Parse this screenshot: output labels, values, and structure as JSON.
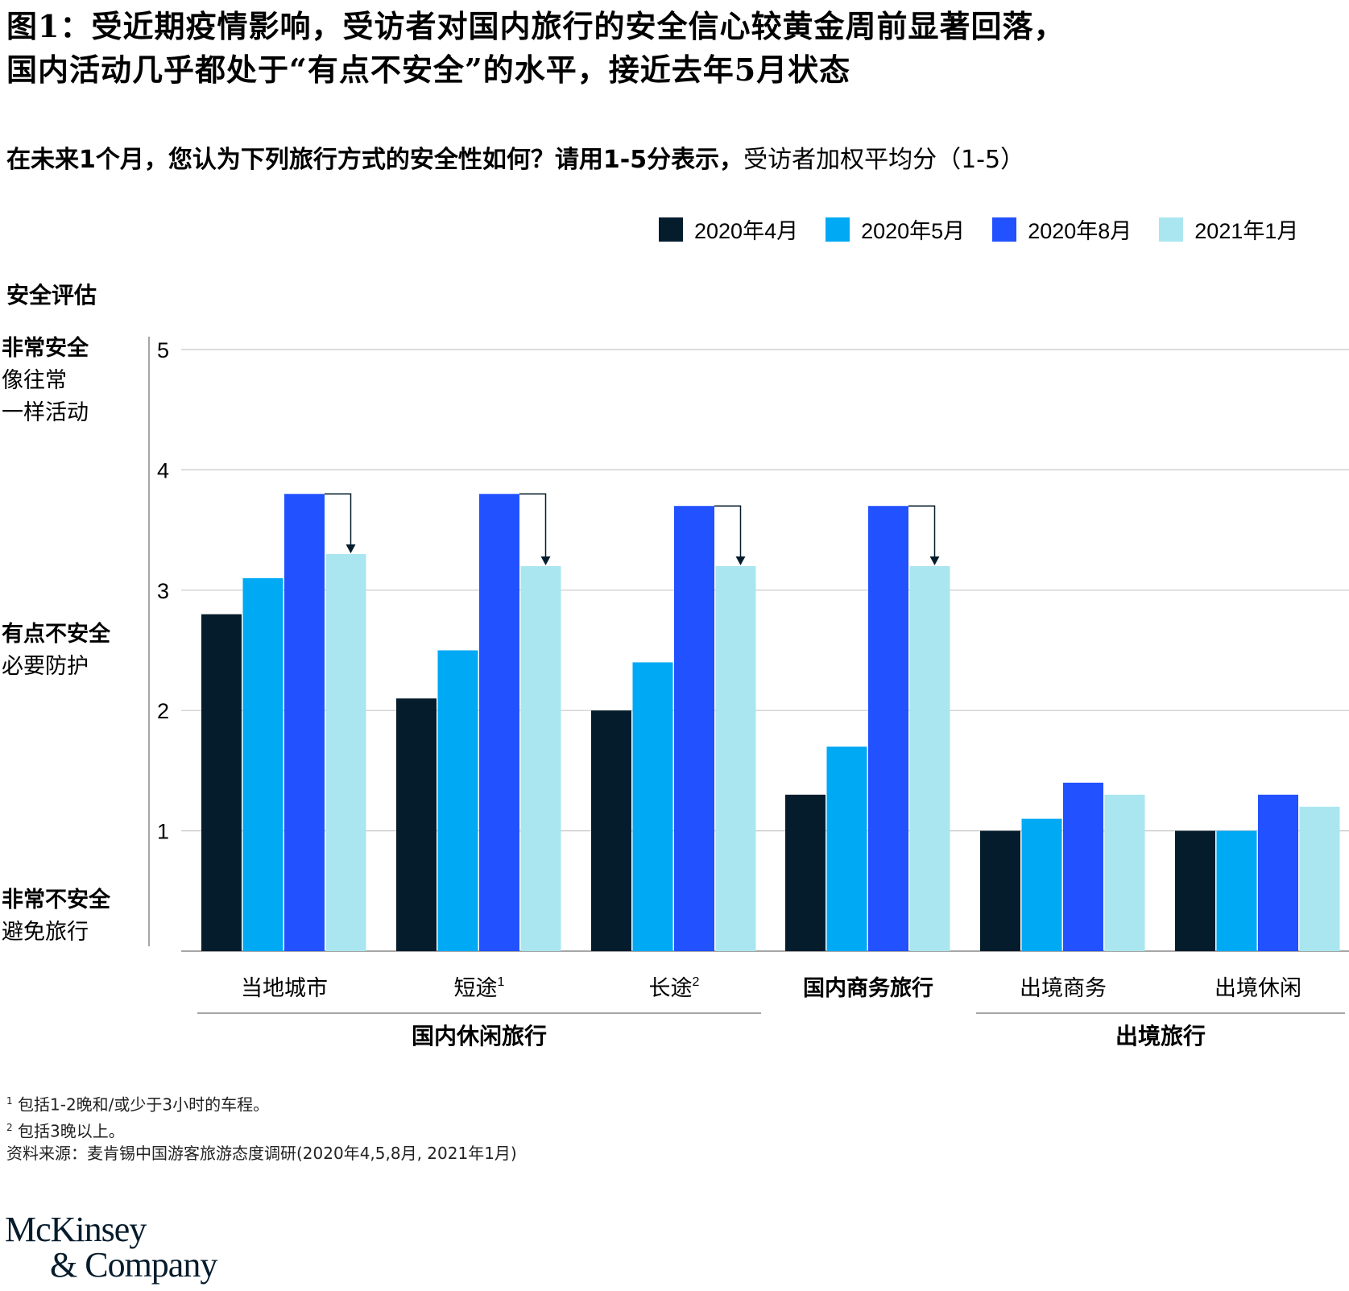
{
  "title_lines": [
    "图1：受近期疫情影响，受访者对国内旅行的安全信心较黄金周前显著回落，",
    "国内活动几乎都处于“有点不安全”的水平，接近去年5月状态"
  ],
  "subtitle": {
    "question": "在未来1个月，您认为下列旅行方式的安全性如何？请用1-5分表示，",
    "measure": "受访者加权平均分（1-5）"
  },
  "legend": [
    {
      "label": "2020年4月",
      "color": "#051c2c"
    },
    {
      "label": "2020年5月",
      "color": "#00a9f4"
    },
    {
      "label": "2020年8月",
      "color": "#2251ff"
    },
    {
      "label": "2021年1月",
      "color": "#aae6f0"
    }
  ],
  "rating_axis": {
    "title": "安全评估",
    "levels": [
      {
        "strong": "非常安全",
        "desc_lines": [
          "像往常",
          "一样活动"
        ]
      },
      {
        "strong": "有点不安全",
        "desc_lines": [
          "必要防护"
        ]
      },
      {
        "strong": "非常不安全",
        "desc_lines": [
          "避免旅行"
        ]
      }
    ]
  },
  "chart_data": {
    "type": "bar",
    "categories": [
      "当地城市",
      "短途",
      "长途",
      "国内商务旅行",
      "出境商务",
      "出境休闲"
    ],
    "category_superscripts": [
      "",
      "1",
      "2",
      "",
      "",
      ""
    ],
    "category_bold": [
      false,
      false,
      false,
      true,
      false,
      false
    ],
    "groups": [
      {
        "label": "国内休闲旅行",
        "from": 0,
        "to": 2
      },
      {
        "label": "出境旅行",
        "from": 4,
        "to": 5
      }
    ],
    "series": [
      {
        "name": "2020年4月",
        "values": [
          2.8,
          2.1,
          2.0,
          1.3,
          1.0,
          1.0
        ]
      },
      {
        "name": "2020年5月",
        "values": [
          3.1,
          2.5,
          2.4,
          1.7,
          1.1,
          1.0
        ]
      },
      {
        "name": "2020年8月",
        "values": [
          3.8,
          3.8,
          3.7,
          3.7,
          1.4,
          1.3
        ]
      },
      {
        "name": "2021年1月",
        "values": [
          3.3,
          3.2,
          3.2,
          3.2,
          1.3,
          1.2
        ]
      }
    ],
    "decline_arrows": [
      0,
      1,
      2,
      3
    ],
    "yticks": [
      1,
      2,
      3,
      4,
      5
    ],
    "ylim": [
      0,
      5
    ],
    "grid": true
  },
  "footnotes": [
    {
      "mark": "1",
      "text": "包括1-2晚和/或少于3小时的车程。"
    },
    {
      "mark": "2",
      "text": "包括3晚以上。"
    },
    {
      "mark": "",
      "text": "资料来源：麦肯锡中国游客旅游态度调研(2020年4,5,8月, 2021年1月)"
    }
  ],
  "logo": {
    "line1": "McKinsey",
    "line2": "& Company"
  }
}
